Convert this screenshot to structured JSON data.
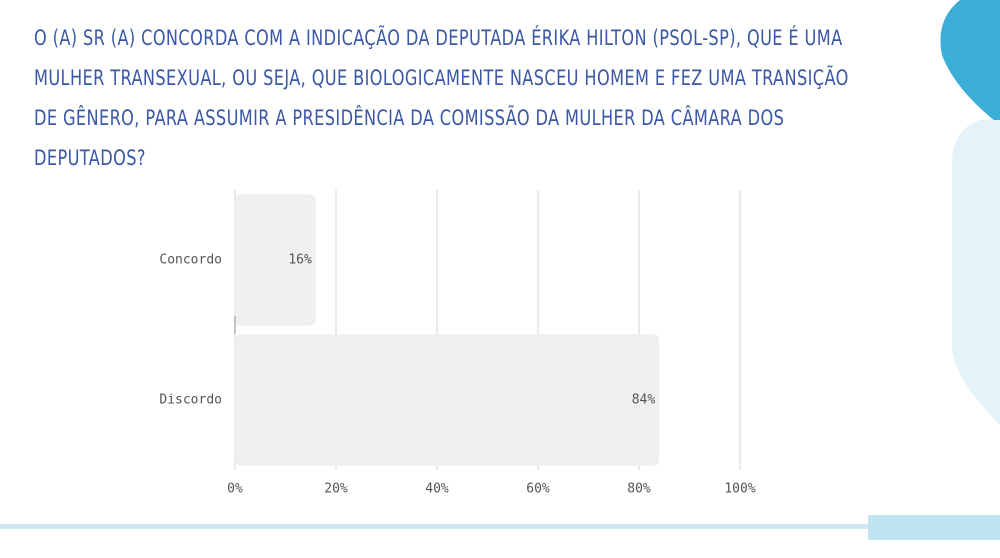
{
  "chart_data": {
    "type": "bar",
    "orientation": "horizontal",
    "title": "O (A) SR (A) CONCORDA COM A INDICAÇÃO DA DEPUTADA ÉRIKA HILTON (PSOL-SP), QUE É UMA MULHER TRANSEXUAL, OU SEJA, QUE BIOLOGICAMENTE NASCEU HOMEM E FEZ UMA TRANSIÇÃO DE GÊNERO, PARA ASSUMIR A PRESIDÊNCIA DA COMISSÃO DA MULHER DA CÂMARA DOS DEPUTADOS?",
    "categories": [
      "Concordo",
      "Discordo"
    ],
    "values": [
      16,
      84
    ],
    "value_labels": [
      "16%",
      "84%"
    ],
    "color": "#eef0f1",
    "xlim": [
      0,
      100
    ],
    "xticks": [
      {
        "value": 0,
        "label": "0%"
      },
      {
        "value": 20,
        "label": "20%"
      },
      {
        "value": 40,
        "label": "40%"
      },
      {
        "value": 60,
        "label": "60%"
      },
      {
        "value": 80,
        "label": "80%"
      },
      {
        "value": 100,
        "label": "100%"
      }
    ],
    "grid": true
  }
}
